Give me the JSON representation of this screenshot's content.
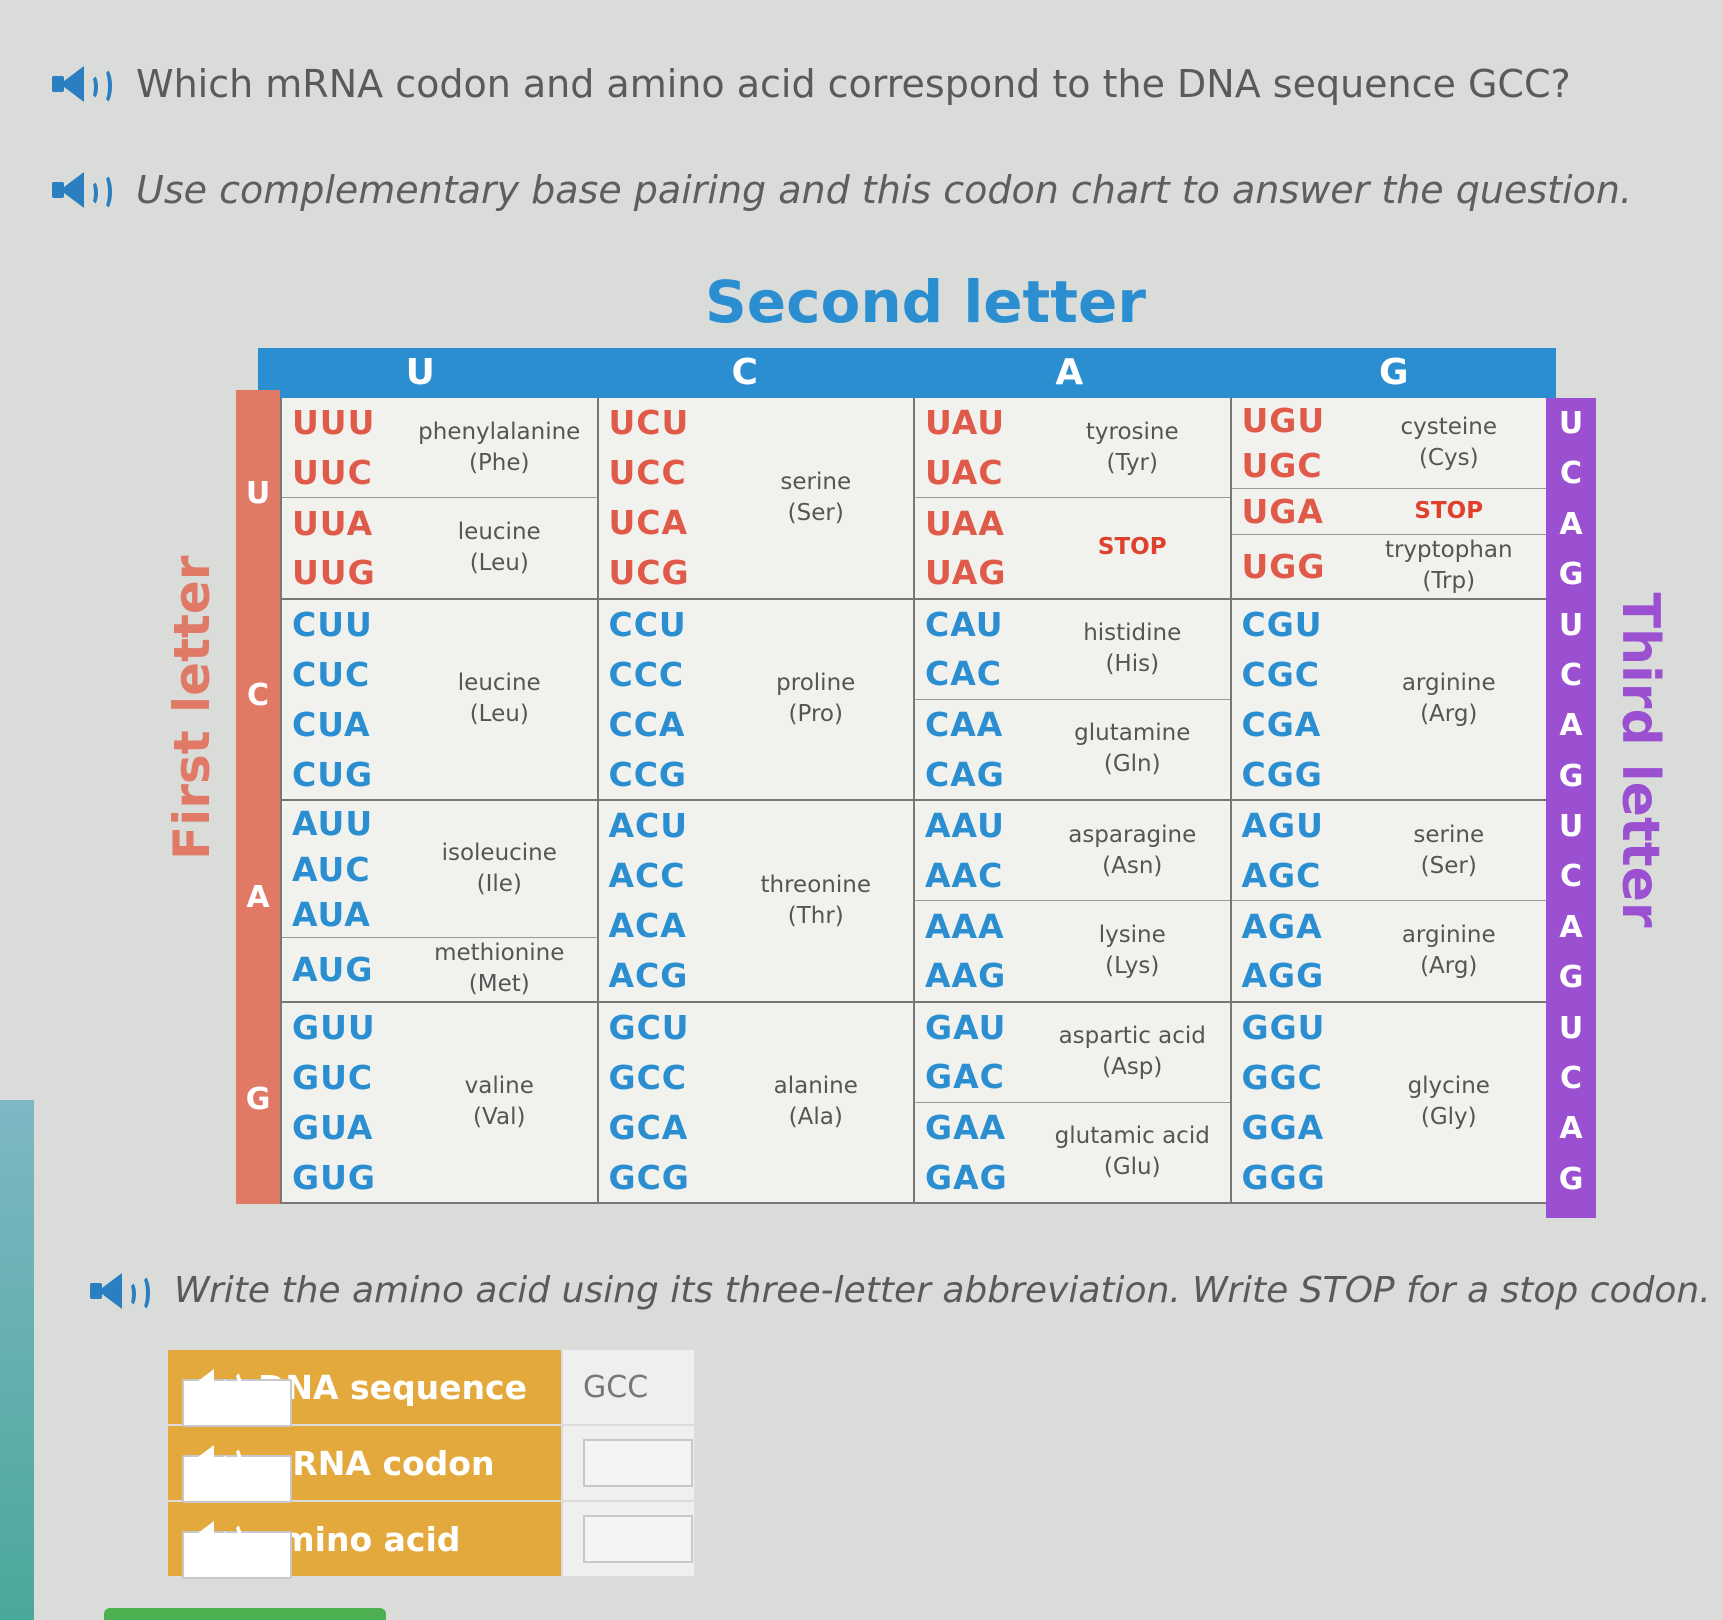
{
  "question": {
    "line1": "Which mRNA codon and amino acid correspond to the DNA sequence GCC?",
    "line2": "Use complementary base pairing and this codon chart to answer the question.",
    "line3": "Write the amino acid using its three-letter abbreviation. Write STOP for a stop codon."
  },
  "chart": {
    "second_title": "Second letter",
    "first_title": "First letter",
    "third_title": "Third letter",
    "second_letters": [
      "U",
      "C",
      "A",
      "G"
    ],
    "first_letters": [
      "U",
      "C",
      "A",
      "G"
    ],
    "third_letters": [
      "U",
      "C",
      "A",
      "G",
      "U",
      "C",
      "A",
      "G",
      "U",
      "C",
      "A",
      "G",
      "U",
      "C",
      "A",
      "G"
    ],
    "rows": [
      [
        [
          {
            "codons": [
              "UUU",
              "UUC"
            ],
            "aa": "phenylalanine",
            "abbr": "(Phe)"
          },
          {
            "codons": [
              "UUA",
              "UUG"
            ],
            "aa": "leucine",
            "abbr": "(Leu)"
          }
        ],
        [
          {
            "codons": [
              "UCU",
              "UCC",
              "UCA",
              "UCG"
            ],
            "aa": "serine",
            "abbr": "(Ser)"
          }
        ],
        [
          {
            "codons": [
              "UAU",
              "UAC"
            ],
            "aa": "tyrosine",
            "abbr": "(Tyr)"
          },
          {
            "codons": [
              "UAA",
              "UAG"
            ],
            "aa": "STOP",
            "abbr": ""
          }
        ],
        [
          {
            "codons": [
              "UGU",
              "UGC"
            ],
            "aa": "cysteine",
            "abbr": "(Cys)"
          },
          {
            "codons": [
              "UGA"
            ],
            "aa": "STOP",
            "abbr": ""
          },
          {
            "codons": [
              "UGG"
            ],
            "aa": "tryptophan",
            "abbr": "(Trp)"
          }
        ]
      ],
      [
        [
          {
            "codons": [
              "CUU",
              "CUC",
              "CUA",
              "CUG"
            ],
            "aa": "leucine",
            "abbr": "(Leu)"
          }
        ],
        [
          {
            "codons": [
              "CCU",
              "CCC",
              "CCA",
              "CCG"
            ],
            "aa": "proline",
            "abbr": "(Pro)"
          }
        ],
        [
          {
            "codons": [
              "CAU",
              "CAC"
            ],
            "aa": "histidine",
            "abbr": "(His)"
          },
          {
            "codons": [
              "CAA",
              "CAG"
            ],
            "aa": "glutamine",
            "abbr": "(Gln)"
          }
        ],
        [
          {
            "codons": [
              "CGU",
              "CGC",
              "CGA",
              "CGG"
            ],
            "aa": "arginine",
            "abbr": "(Arg)"
          }
        ]
      ],
      [
        [
          {
            "codons": [
              "AUU",
              "AUC",
              "AUA"
            ],
            "aa": "isoleucine",
            "abbr": "(Ile)"
          },
          {
            "codons": [
              "AUG"
            ],
            "aa": "methionine",
            "abbr": "(Met)"
          }
        ],
        [
          {
            "codons": [
              "ACU",
              "ACC",
              "ACA",
              "ACG"
            ],
            "aa": "threonine",
            "abbr": "(Thr)"
          }
        ],
        [
          {
            "codons": [
              "AAU",
              "AAC"
            ],
            "aa": "asparagine",
            "abbr": "(Asn)"
          },
          {
            "codons": [
              "AAA",
              "AAG"
            ],
            "aa": "lysine",
            "abbr": "(Lys)"
          }
        ],
        [
          {
            "codons": [
              "AGU",
              "AGC"
            ],
            "aa": "serine",
            "abbr": "(Ser)"
          },
          {
            "codons": [
              "AGA",
              "AGG"
            ],
            "aa": "arginine",
            "abbr": "(Arg)"
          }
        ]
      ],
      [
        [
          {
            "codons": [
              "GUU",
              "GUC",
              "GUA",
              "GUG"
            ],
            "aa": "valine",
            "abbr": "(Val)"
          }
        ],
        [
          {
            "codons": [
              "GCU",
              "GCC",
              "GCA",
              "GCG"
            ],
            "aa": "alanine",
            "abbr": "(Ala)"
          }
        ],
        [
          {
            "codons": [
              "GAU",
              "GAC"
            ],
            "aa": "aspartic acid",
            "abbr": "(Asp)"
          },
          {
            "codons": [
              "GAA",
              "GAG"
            ],
            "aa": "glutamic acid",
            "abbr": "(Glu)"
          }
        ],
        [
          {
            "codons": [
              "GGU",
              "GGC",
              "GGA",
              "GGG"
            ],
            "aa": "glycine",
            "abbr": "(Gly)"
          }
        ]
      ]
    ],
    "colors": {
      "second": "#2b8ed0",
      "first": "#e07a66",
      "third": "#9b4fd1",
      "codon_U": "#e05a4a",
      "codon_C": "#2b8ed0",
      "codon_A": "#2b8ed0",
      "codon_G": "#2b8ed0"
    }
  },
  "answer_table": {
    "dna_label": "DNA sequence",
    "dna_value": "GCC",
    "mrna_label": "mRNA codon",
    "mrna_value": "",
    "aa_label": "amino acid",
    "aa_value": ""
  }
}
